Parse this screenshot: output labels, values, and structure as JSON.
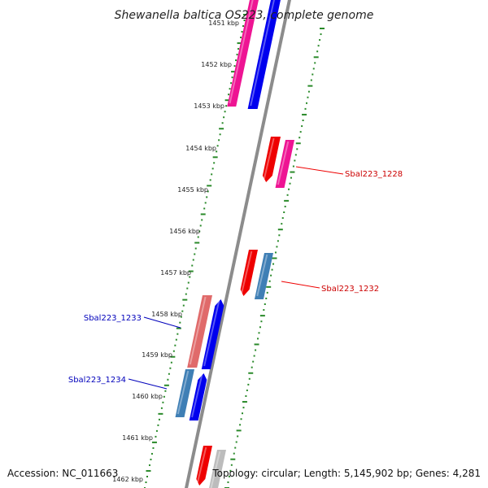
{
  "title": "Shewanella baltica OS223, complete genome",
  "accession": "Accession: NC_011663",
  "topology": "Topology: circular; Length: 5,145,902 bp; Genes: 4,281",
  "kbp_labels": [
    "1451 kbp",
    "1452 kbp",
    "1453 kbp",
    "1454 kbp",
    "1455 kbp",
    "1456 kbp",
    "1457 kbp",
    "1458 kbp",
    "1459 kbp",
    "1460 kbp",
    "1461 kbp",
    "1462 kbp"
  ],
  "gene_labels": [
    {
      "text": "Sbal223_1228",
      "color": "#cc0000"
    },
    {
      "text": "Sbal223_1232",
      "color": "#cc0000"
    },
    {
      "text": "Sbal223_1233",
      "color": "#0000bb"
    },
    {
      "text": "Sbal223_1234",
      "color": "#0000bb"
    }
  ],
  "colors": {
    "backbone": "#8c8c8c",
    "tick_dots": "#2a8a2a",
    "red": "#ee0000",
    "magenta": "#ee1493",
    "blue": "#0000ee",
    "steelblue": "#3f7fb5",
    "pink": "#e06a6a",
    "grey": "#bcbcbc"
  }
}
